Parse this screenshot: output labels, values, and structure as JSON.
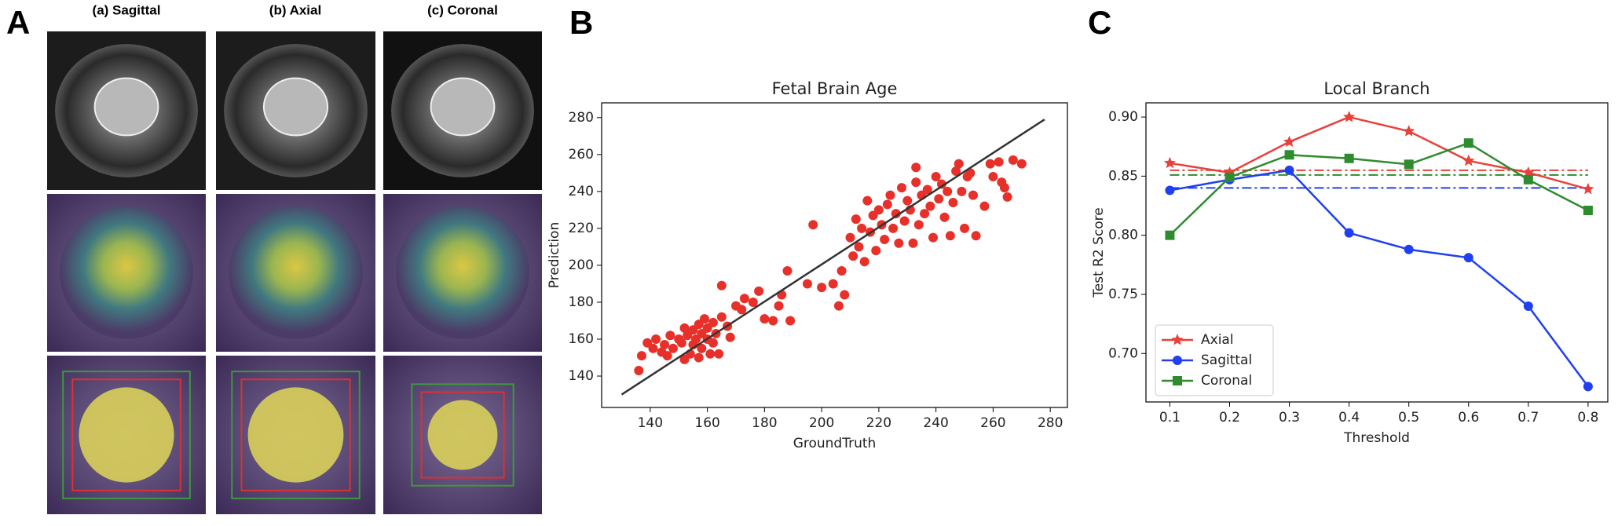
{
  "panel_labels": [
    "A",
    "B",
    "C"
  ],
  "panel_a": {
    "titles": [
      "(a) Sagittal",
      "(b) Axial",
      "(c) Coronal"
    ]
  },
  "chart_data": [
    {
      "type": "scatter",
      "title": "Fetal Brain Age",
      "x_label": "GroundTruth",
      "y_label": "Prediction",
      "color": "#e8302a",
      "x": [
        136,
        137,
        139,
        141,
        142,
        144,
        145,
        146,
        147,
        148,
        150,
        151,
        152,
        152,
        153,
        154,
        155,
        155,
        156,
        157,
        157,
        158,
        158,
        159,
        160,
        160,
        161,
        162,
        162,
        163,
        164,
        165,
        165,
        167,
        168,
        170,
        172,
        173,
        176,
        178,
        180,
        183,
        185,
        186,
        188,
        189,
        195,
        197,
        200,
        204,
        206,
        207,
        208,
        210,
        211,
        212,
        213,
        214,
        215,
        216,
        217,
        218,
        219,
        220,
        221,
        222,
        223,
        224,
        225,
        226,
        227,
        228,
        229,
        230,
        231,
        232,
        233,
        233,
        234,
        235,
        236,
        237,
        238,
        239,
        240,
        241,
        242,
        243,
        244,
        245,
        246,
        247,
        248,
        249,
        250,
        251,
        252,
        253,
        254,
        257,
        259,
        260,
        262,
        263,
        264,
        265,
        267,
        270
      ],
      "y": [
        143,
        151,
        158,
        155,
        160,
        153,
        157,
        151,
        162,
        155,
        160,
        158,
        166,
        149,
        162,
        152,
        157,
        165,
        160,
        150,
        168,
        163,
        155,
        171,
        160,
        166,
        152,
        158,
        169,
        163,
        152,
        189,
        172,
        167,
        161,
        178,
        176,
        182,
        180,
        186,
        171,
        170,
        178,
        184,
        197,
        170,
        190,
        222,
        188,
        190,
        178,
        197,
        184,
        215,
        205,
        225,
        210,
        220,
        202,
        235,
        218,
        227,
        208,
        230,
        222,
        214,
        233,
        238,
        220,
        228,
        212,
        242,
        224,
        235,
        230,
        212,
        245,
        253,
        222,
        238,
        228,
        241,
        232,
        215,
        248,
        236,
        244,
        226,
        240,
        216,
        234,
        251,
        255,
        240,
        220,
        248,
        250,
        238,
        216,
        232,
        255,
        248,
        256,
        245,
        242,
        237,
        257,
        255
      ],
      "fit_line": {
        "x": [
          130,
          278
        ],
        "y": [
          130,
          279
        ],
        "color": "#333333"
      },
      "xlim": [
        123,
        286
      ],
      "ylim": [
        123,
        288
      ],
      "xticks": [
        140,
        160,
        180,
        200,
        220,
        240,
        260,
        280
      ],
      "yticks": [
        140,
        160,
        180,
        200,
        220,
        240,
        260,
        280
      ]
    },
    {
      "type": "line",
      "title": "Local Branch",
      "x_label": "Threshold",
      "y_label": "Test R2 Score",
      "x": [
        0.1,
        0.2,
        0.3,
        0.4,
        0.5,
        0.6,
        0.7,
        0.8
      ],
      "series": [
        {
          "name": "Axial",
          "color": "#e8413a",
          "marker": "star",
          "values": [
            0.861,
            0.853,
            0.879,
            0.9,
            0.888,
            0.863,
            0.853,
            0.839
          ]
        },
        {
          "name": "Sagittal",
          "color": "#1f3ff0",
          "marker": "circle",
          "values": [
            0.838,
            0.847,
            0.855,
            0.802,
            0.788,
            0.781,
            0.74,
            0.672
          ]
        },
        {
          "name": "Coronal",
          "color": "#2e8b2e",
          "marker": "square",
          "values": [
            0.8,
            0.849,
            0.868,
            0.865,
            0.86,
            0.878,
            0.847,
            0.821
          ]
        }
      ],
      "reference_lines": [
        {
          "value": 0.855,
          "color": "#e8413a"
        },
        {
          "value": 0.851,
          "color": "#2e8b2e"
        },
        {
          "value": 0.84,
          "color": "#1f3ff0"
        }
      ],
      "legend": "lower left",
      "xlim": [
        0.06,
        0.833
      ],
      "ylim": [
        0.659,
        0.912
      ],
      "xticks": [
        0.1,
        0.2,
        0.3,
        0.4,
        0.5,
        0.6,
        0.7,
        0.8
      ],
      "yticks": [
        {
          "value": 0.7,
          "label": "0.70"
        },
        0.75,
        {
          "value": 0.8,
          "label": "0.80"
        },
        0.85,
        {
          "value": 0.9,
          "label": "0.90"
        }
      ]
    }
  ]
}
